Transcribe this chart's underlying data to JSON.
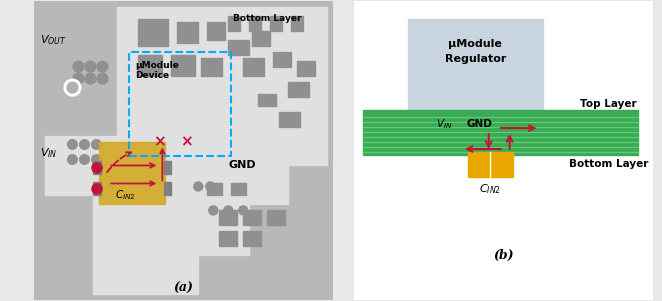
{
  "bg_color": "#e8e8e8",
  "panel_a": {
    "bg": "#c8c8c8",
    "gold_color": "#d4a820",
    "dashed_box_color": "#00aaff",
    "arrow_color": "#c0143c",
    "label_bottom": "Bottom Layer",
    "label_device": "μModule\nDevice",
    "label_cin2": "C_{IN2}",
    "label_a": "(a)"
  },
  "panel_b": {
    "module_bg": "#c8d4e0",
    "pcb_green": "#3aaa55",
    "gold_color": "#e8a800",
    "arrow_color": "#c0143c",
    "blue_box_color": "#2255cc",
    "label_module": "μModule\nRegulator",
    "label_top": "Top Layer",
    "label_bottom": "Bottom Layer",
    "label_cin2": "C_{IN2}",
    "label_b": "(b)"
  }
}
